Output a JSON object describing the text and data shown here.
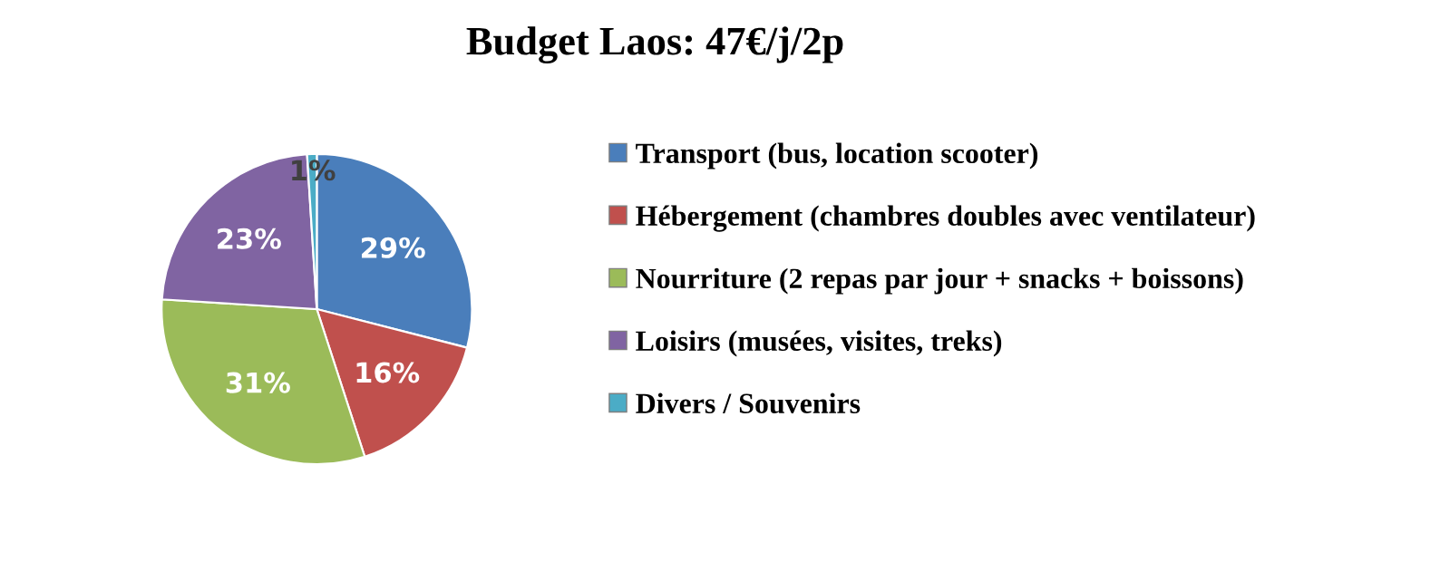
{
  "chart_data": {
    "type": "pie",
    "title": "Budget Laos: 47€/j/2p",
    "categories": [
      "Transport (bus, location scooter)",
      "Hébergement (chambres doubles avec ventilateur)",
      "Nourriture (2 repas par jour + snacks + boissons)",
      "Loisirs (musées, visites, treks)",
      "Divers / Souvenirs"
    ],
    "values": [
      29,
      16,
      31,
      23,
      1
    ],
    "colors": [
      "#4a7ebb",
      "#c0504d",
      "#9bbb59",
      "#8064a2",
      "#4bacc6"
    ],
    "value_labels": [
      "29%",
      "16%",
      "31%",
      "23%",
      "1%"
    ],
    "legend": "right"
  }
}
